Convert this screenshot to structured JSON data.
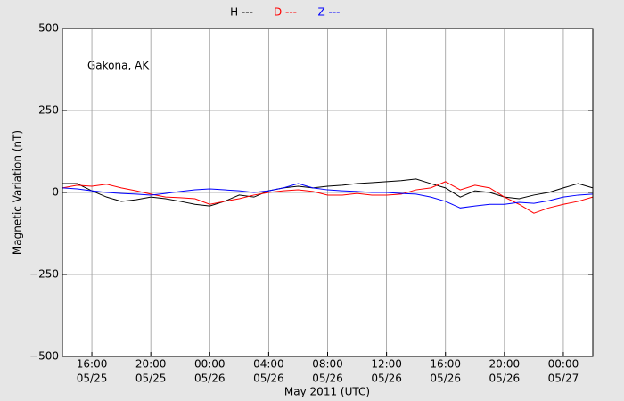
{
  "chart_data": {
    "type": "line",
    "annotation": "Gakona, AK",
    "xlabel": "May 2011 (UTC)",
    "ylabel": "Magnetic Variation (nT)",
    "xlim": [
      "2011-05-25T14:00",
      "2011-05-27T02:00"
    ],
    "xticks": [
      {
        "value": "2011-05-25T16:00",
        "label": [
          "16:00",
          "05/25"
        ]
      },
      {
        "value": "2011-05-25T20:00",
        "label": [
          "20:00",
          "05/25"
        ]
      },
      {
        "value": "2011-05-26T00:00",
        "label": [
          "00:00",
          "05/26"
        ]
      },
      {
        "value": "2011-05-26T04:00",
        "label": [
          "04:00",
          "05/26"
        ]
      },
      {
        "value": "2011-05-26T08:00",
        "label": [
          "08:00",
          "05/26"
        ]
      },
      {
        "value": "2011-05-26T12:00",
        "label": [
          "12:00",
          "05/26"
        ]
      },
      {
        "value": "2011-05-26T16:00",
        "label": [
          "16:00",
          "05/26"
        ]
      },
      {
        "value": "2011-05-26T20:00",
        "label": [
          "20:00",
          "05/26"
        ]
      },
      {
        "value": "2011-05-27T00:00",
        "label": [
          "00:00",
          "05/27"
        ]
      }
    ],
    "ylim": [
      -500,
      500
    ],
    "yticks": [
      {
        "value": -500,
        "label": "−500"
      },
      {
        "value": -250,
        "label": "−250"
      },
      0,
      250,
      500
    ],
    "grid": true,
    "legend": "top",
    "x": [
      "2011-05-25T14:00",
      "2011-05-25T15:00",
      "2011-05-25T16:00",
      "2011-05-25T17:00",
      "2011-05-25T18:00",
      "2011-05-25T19:00",
      "2011-05-25T20:00",
      "2011-05-25T21:00",
      "2011-05-25T22:00",
      "2011-05-25T23:00",
      "2011-05-26T00:00",
      "2011-05-26T01:00",
      "2011-05-26T02:00",
      "2011-05-26T03:00",
      "2011-05-26T04:00",
      "2011-05-26T05:00",
      "2011-05-26T06:00",
      "2011-05-26T07:00",
      "2011-05-26T08:00",
      "2011-05-26T09:00",
      "2011-05-26T10:00",
      "2011-05-26T11:00",
      "2011-05-26T12:00",
      "2011-05-26T13:00",
      "2011-05-26T14:00",
      "2011-05-26T15:00",
      "2011-05-26T16:00",
      "2011-05-26T17:00",
      "2011-05-26T18:00",
      "2011-05-26T19:00",
      "2011-05-26T20:00",
      "2011-05-26T21:00",
      "2011-05-26T22:00",
      "2011-05-26T23:00",
      "2011-05-27T00:00",
      "2011-05-27T01:00",
      "2011-05-27T02:00"
    ],
    "series": [
      {
        "name": "H ---",
        "color": "#000000",
        "values": [
          27,
          27,
          5,
          -14,
          -27,
          -22,
          -14,
          -19,
          -27,
          -36,
          -41,
          -27,
          -8,
          -14,
          5,
          14,
          19,
          14,
          19,
          22,
          27,
          30,
          33,
          36,
          41,
          27,
          14,
          -14,
          5,
          0,
          -14,
          -19,
          -8,
          0,
          14,
          27,
          14
        ]
      },
      {
        "name": "D ---",
        "color": "#ff0000",
        "values": [
          14,
          22,
          19,
          25,
          14,
          5,
          -5,
          -14,
          -16,
          -19,
          -36,
          -27,
          -19,
          -8,
          0,
          5,
          8,
          3,
          -8,
          -8,
          -3,
          -8,
          -8,
          -5,
          8,
          14,
          33,
          8,
          22,
          14,
          -14,
          -36,
          -63,
          -47,
          -36,
          -27,
          -14
        ]
      },
      {
        "name": "Z ---",
        "color": "#0000ff",
        "values": [
          14,
          11,
          5,
          0,
          -3,
          -5,
          -8,
          -3,
          3,
          8,
          11,
          8,
          5,
          0,
          5,
          14,
          27,
          14,
          8,
          5,
          3,
          0,
          0,
          -3,
          -5,
          -14,
          -27,
          -47,
          -41,
          -36,
          -36,
          -30,
          -33,
          -25,
          -14,
          -8,
          -5
        ]
      }
    ]
  }
}
